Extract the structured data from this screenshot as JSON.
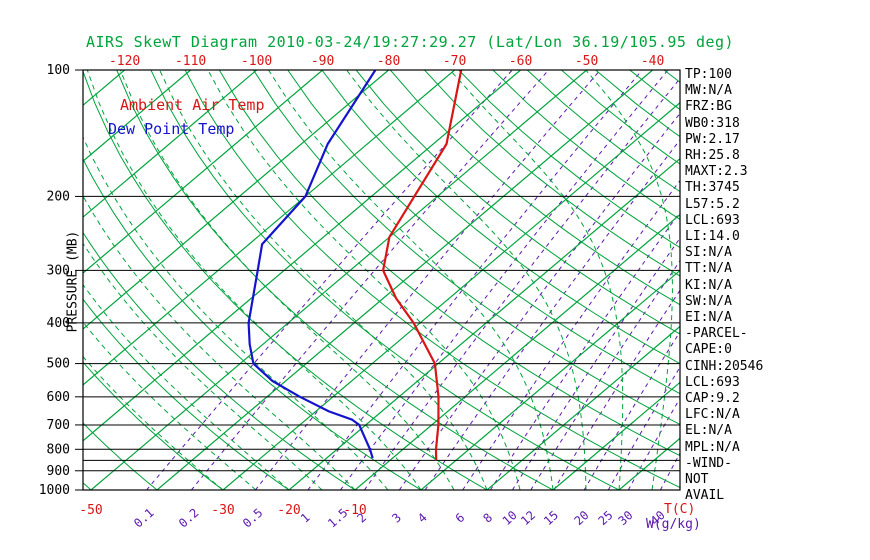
{
  "title": "AIRS SkewT Diagram 2010-03-24/19:27:29.27 (Lat/Lon 36.19/105.95 deg)",
  "legend": {
    "temp_label": "Ambient Air Temp",
    "dewpoint_label": "Dew Point Temp"
  },
  "axes": {
    "pressure_axis_title": "PRESSURE (MB)",
    "temp_axis_title": "T(C)",
    "mixing_axis_title": "W(g/kg)",
    "top_temp_ticks": [
      -120,
      -110,
      -100,
      -90,
      -80,
      -70,
      -60,
      -50,
      -40
    ],
    "bottom_temp_ticks": [
      -50,
      -30,
      -20,
      -10
    ],
    "pressure_ticks": [
      100,
      200,
      300,
      400,
      500,
      600,
      700,
      800,
      900,
      1000
    ],
    "mixing_ratio_ticks": [
      0.1,
      0.2,
      0.5,
      1,
      1.5,
      2,
      3,
      4,
      6,
      8,
      10,
      12,
      15,
      20,
      25,
      30,
      40
    ]
  },
  "colors": {
    "green": "#00a43c",
    "red": "#d81616",
    "blue": "#1414cc",
    "purple": "#5c16b0",
    "black": "#000000",
    "background": "#ffffff"
  },
  "chart_data": {
    "type": "skewt-log-p",
    "pressure_range_mb": [
      100,
      1000
    ],
    "pressure_gridlines_mb": [
      100,
      200,
      300,
      400,
      500,
      600,
      700,
      800,
      850,
      900,
      1000
    ],
    "isotherms_c": {
      "min": -130,
      "max": 50,
      "step": 10
    },
    "dry_adiabats_theta_c": {
      "min": -60,
      "max": 200,
      "step": 10
    },
    "moist_adiabats_start_c": {
      "min": -30,
      "max": 40,
      "step": 5
    },
    "mixing_ratio_lines_gkg": [
      0.1,
      0.2,
      0.5,
      1,
      1.5,
      2,
      3,
      4,
      6,
      8,
      10,
      12,
      15,
      20,
      25,
      30,
      40
    ],
    "temperature_profile": {
      "name": "Ambient Air Temp",
      "pressure_mb": [
        850,
        800,
        700,
        600,
        500,
        400,
        350,
        300,
        250,
        200,
        150,
        100
      ],
      "temp_c": [
        -3,
        -5,
        -9,
        -14,
        -20.5,
        -31,
        -38,
        -45,
        -50,
        -53.5,
        -58,
        -69
      ]
    },
    "dewpoint_profile": {
      "name": "Dew Point Temp",
      "pressure_mb": [
        840,
        800,
        700,
        680,
        650,
        600,
        550,
        500,
        450,
        400,
        300,
        260,
        200,
        150,
        100
      ],
      "temp_c": [
        -13,
        -15,
        -21,
        -23,
        -28,
        -35,
        -42,
        -48,
        -52,
        -56,
        -64,
        -68,
        -70,
        -76,
        -82
      ]
    }
  },
  "stats_panel": [
    "TP:100",
    "MW:N/A",
    "FRZ:BG",
    "WB0:318",
    "PW:2.17",
    "RH:25.8",
    "MAXT:2.3",
    "TH:3745",
    "L57:5.2",
    "LCL:693",
    "LI:14.0",
    "SI:N/A",
    "TT:N/A",
    "KI:N/A",
    "SW:N/A",
    "EI:N/A",
    "-PARCEL-",
    "CAPE:0",
    "CINH:20546",
    "LCL:693",
    "CAP:9.2",
    "LFC:N/A",
    "EL:N/A",
    "MPL:N/A",
    "-WIND-",
    "NOT",
    "AVAIL"
  ]
}
